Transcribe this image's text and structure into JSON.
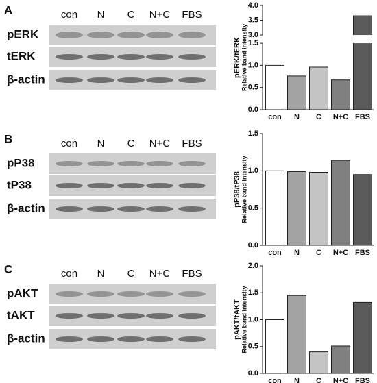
{
  "panels": [
    {
      "label": "A",
      "lanes": [
        "con",
        "N",
        "C",
        "N+C",
        "FBS"
      ],
      "rows": [
        "pERK",
        "tERK",
        "β-actin"
      ]
    },
    {
      "label": "B",
      "lanes": [
        "con",
        "N",
        "C",
        "N+C",
        "FBS"
      ],
      "rows": [
        "pP38",
        "tP38",
        "β-actin"
      ]
    },
    {
      "label": "C",
      "lanes": [
        "con",
        "N",
        "C",
        "N+C",
        "FBS"
      ],
      "rows": [
        "pAKT",
        "tAKT",
        "β-actin"
      ]
    }
  ],
  "chart_data": [
    {
      "type": "bar",
      "ylabel": "pERK/tERK",
      "ylabel_sub": "Relative band intensity",
      "categories": [
        "con",
        "N",
        "C",
        "N+C",
        "FBS"
      ],
      "values": [
        1.0,
        0.76,
        0.96,
        0.67,
        3.65
      ],
      "colors": [
        "#ffffff",
        "#a3a3a3",
        "#c4c4c4",
        "#808080",
        "#5a5a5a"
      ],
      "ylim": [
        0,
        4.0
      ],
      "ybreak": [
        1.5,
        3.0
      ],
      "yticks": [
        {
          "value": 0,
          "label": "0.0"
        },
        {
          "value": 0.5,
          "label": "0.5"
        },
        {
          "value": 1.0,
          "label": "1.0"
        },
        {
          "value": 1.5,
          "label": "1.5"
        },
        {
          "value": 3.0,
          "label": "3.0"
        },
        {
          "value": 3.5,
          "label": "3.5"
        },
        {
          "value": 4.0,
          "label": "4.0"
        }
      ]
    },
    {
      "type": "bar",
      "ylabel": "pP38/tP38",
      "ylabel_sub": "Relative band intensity",
      "categories": [
        "con",
        "N",
        "C",
        "N+C",
        "FBS"
      ],
      "values": [
        1.0,
        0.99,
        0.98,
        1.14,
        0.95
      ],
      "colors": [
        "#ffffff",
        "#a3a3a3",
        "#c4c4c4",
        "#808080",
        "#5a5a5a"
      ],
      "ylim": [
        0,
        1.5
      ],
      "yticks": [
        {
          "value": 0,
          "label": "0.0"
        },
        {
          "value": 0.5,
          "label": "0.5"
        },
        {
          "value": 1.0,
          "label": "1.0"
        },
        {
          "value": 1.5,
          "label": "1.5"
        }
      ]
    },
    {
      "type": "bar",
      "ylabel": "pAKT/tAKT",
      "ylabel_sub": "Relative band intensity",
      "categories": [
        "con",
        "N",
        "C",
        "N+C",
        "FBS"
      ],
      "values": [
        1.0,
        1.45,
        0.4,
        0.51,
        1.32
      ],
      "colors": [
        "#ffffff",
        "#a3a3a3",
        "#c4c4c4",
        "#808080",
        "#5a5a5a"
      ],
      "ylim": [
        0,
        2.0
      ],
      "yticks": [
        {
          "value": 0,
          "label": "0.0"
        },
        {
          "value": 0.5,
          "label": "0.5"
        },
        {
          "value": 1.0,
          "label": "1.0"
        },
        {
          "value": 1.5,
          "label": "1.5"
        },
        {
          "value": 2.0,
          "label": "2.0"
        }
      ]
    }
  ]
}
